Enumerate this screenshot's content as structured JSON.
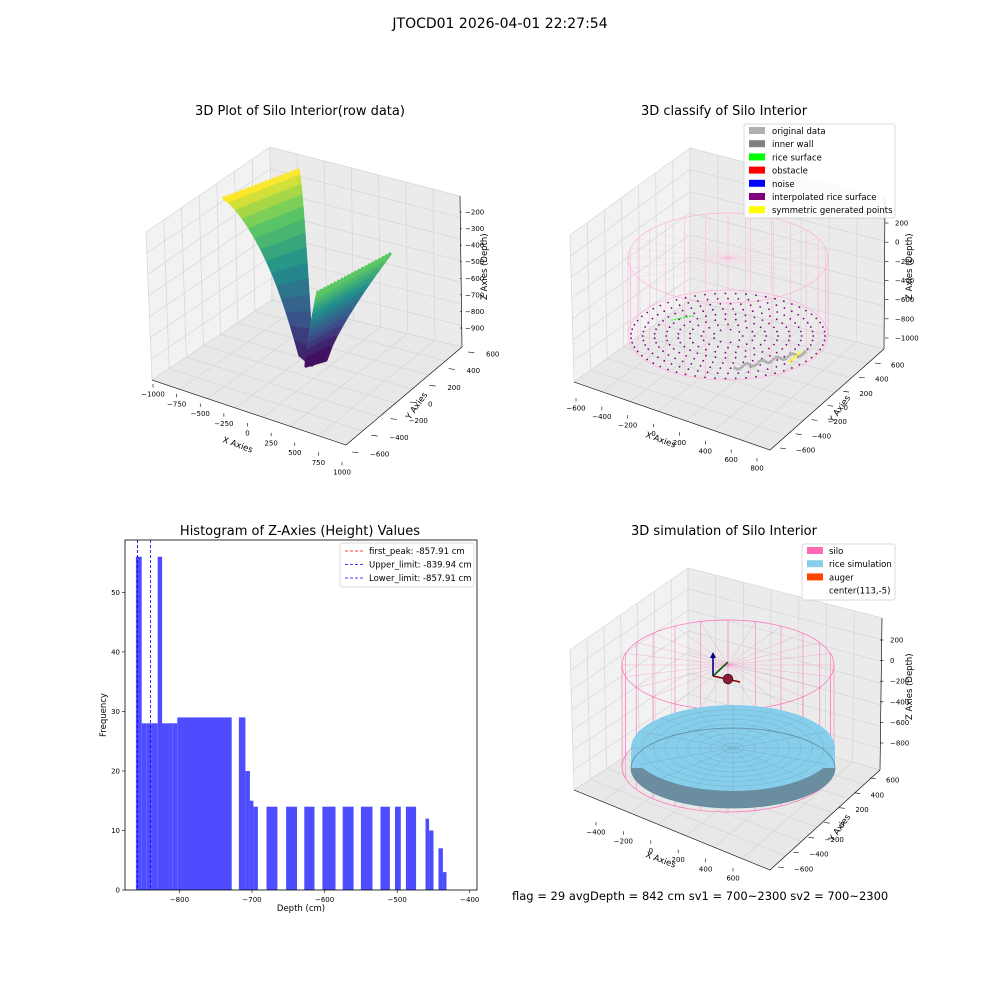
{
  "suptitle": "JTOCD01 2026-04-01 22:27:54",
  "footer": "flag = 29  avgDepth = 842 cm  sv1 = 700~2300  sv2 = 700~2300",
  "chart_data": [
    {
      "type": "surface3d",
      "title": "3D Plot of Silo Interior(row data)",
      "xlabel": "X Axies",
      "ylabel": "Y Axies",
      "zlabel": "Z Axies (Depth)",
      "x_ticks": [
        "−1000",
        "−750",
        "−500",
        "−250",
        "0",
        "250",
        "500",
        "750",
        "1000"
      ],
      "y_ticks": [
        "−600",
        "−400",
        "−200",
        "0",
        "200",
        "400",
        "600"
      ],
      "z_ticks": [
        "−900",
        "−800",
        "−700",
        "−600",
        "−500",
        "−400",
        "−300",
        "−200"
      ],
      "colormap": "viridis",
      "xlim": [
        -1000,
        1000
      ],
      "ylim": [
        -600,
        600
      ],
      "zlim": [
        -950,
        -150
      ]
    },
    {
      "type": "scatter3d",
      "title": "3D classify of Silo Interior",
      "xlabel": "X Axies",
      "ylabel": "Y Axies",
      "zlabel": "Z Axies (Depth)",
      "x_ticks": [
        "−600",
        "−400",
        "−200",
        "0",
        "200",
        "400",
        "600",
        "800"
      ],
      "y_ticks": [
        "−600",
        "−400",
        "−200",
        "0",
        "200",
        "400",
        "600"
      ],
      "z_ticks": [
        "−1000",
        "−800",
        "−600",
        "−400",
        "−200",
        "0",
        "200"
      ],
      "legend": [
        {
          "label": "original data",
          "color": "#b0b0b0"
        },
        {
          "label": "inner wall",
          "color": "#808080"
        },
        {
          "label": "rice surface",
          "color": "#00ff00"
        },
        {
          "label": "obstacle",
          "color": "#ff0000"
        },
        {
          "label": "noise",
          "color": "#0000ff"
        },
        {
          "label": "interpolated rice surface",
          "color": "#800080"
        },
        {
          "label": "symmetric generated points",
          "color": "#ffff00"
        }
      ]
    },
    {
      "type": "bar",
      "title": "Histogram of Z-Axies (Height) Values",
      "xlabel": "Depth (cm)",
      "ylabel": "Frequency",
      "xlim": [
        -875,
        -390
      ],
      "ylim": [
        0,
        58.8
      ],
      "x_ticks": [
        -800,
        -700,
        -600,
        -500,
        -400
      ],
      "x_tick_labels": [
        "−800",
        "−700",
        "−600",
        "−500",
        "−400"
      ],
      "y_ticks": [
        0,
        10,
        20,
        30,
        40,
        50
      ],
      "y_tick_labels": [
        "0",
        "10",
        "20",
        "30",
        "40",
        "50"
      ],
      "bar_color": "#4d4dff",
      "bins": [
        {
          "x0": -860,
          "x1": -852,
          "v": 56
        },
        {
          "x0": -852,
          "x1": -845,
          "v": 28
        },
        {
          "x0": -845,
          "x1": -838,
          "v": 28
        },
        {
          "x0": -838,
          "x1": -830,
          "v": 28
        },
        {
          "x0": -830,
          "x1": -824,
          "v": 56
        },
        {
          "x0": -824,
          "x1": -810,
          "v": 28
        },
        {
          "x0": -810,
          "x1": -803,
          "v": 28
        },
        {
          "x0": -803,
          "x1": -728,
          "v": 29
        },
        {
          "x0": -718,
          "x1": -709,
          "v": 29
        },
        {
          "x0": -709,
          "x1": -703,
          "v": 20
        },
        {
          "x0": -703,
          "x1": -698,
          "v": 15
        },
        {
          "x0": -698,
          "x1": -692,
          "v": 14
        },
        {
          "x0": -680,
          "x1": -665,
          "v": 14
        },
        {
          "x0": -653,
          "x1": -638,
          "v": 14
        },
        {
          "x0": -628,
          "x1": -614,
          "v": 14
        },
        {
          "x0": -603,
          "x1": -585,
          "v": 14
        },
        {
          "x0": -575,
          "x1": -560,
          "v": 14
        },
        {
          "x0": -550,
          "x1": -534,
          "v": 14
        },
        {
          "x0": -523,
          "x1": -510,
          "v": 14
        },
        {
          "x0": -503,
          "x1": -495,
          "v": 14
        },
        {
          "x0": -488,
          "x1": -474,
          "v": 14
        },
        {
          "x0": -461,
          "x1": -456,
          "v": 12
        },
        {
          "x0": -456,
          "x1": -450,
          "v": 10
        },
        {
          "x0": -443,
          "x1": -437,
          "v": 7
        },
        {
          "x0": -437,
          "x1": -432,
          "v": 3
        }
      ],
      "vlines": [
        {
          "x": -857.91,
          "color": "#ff0000",
          "label": "first_peak: -857.91 cm"
        },
        {
          "x": -839.94,
          "color": "#0000ff",
          "label": "Upper_limit: -839.94 cm"
        },
        {
          "x": -857.91,
          "color": "#0000ff",
          "label": "Lower_limit: -857.91 cm"
        }
      ]
    },
    {
      "type": "surface3d",
      "title": "3D simulation of Silo Interior",
      "xlabel": "X Axies",
      "ylabel": "Y Axies",
      "zlabel": "Z Axies (Depth)",
      "x_ticks": [
        "−400",
        "−200",
        "0",
        "200",
        "400",
        "600"
      ],
      "y_ticks": [
        "−600",
        "−400",
        "−200",
        "0",
        "200",
        "400",
        "600"
      ],
      "z_ticks": [
        "−800",
        "−600",
        "−400",
        "−200",
        "0",
        "200"
      ],
      "legend": [
        {
          "label": "silo",
          "color": "#ff69b4"
        },
        {
          "label": "rice simulation",
          "color": "#87ceeb"
        },
        {
          "label": "auger",
          "color": "#ff4500"
        },
        {
          "label": "center(113,-5)",
          "color": "#ffffff"
        }
      ]
    }
  ]
}
